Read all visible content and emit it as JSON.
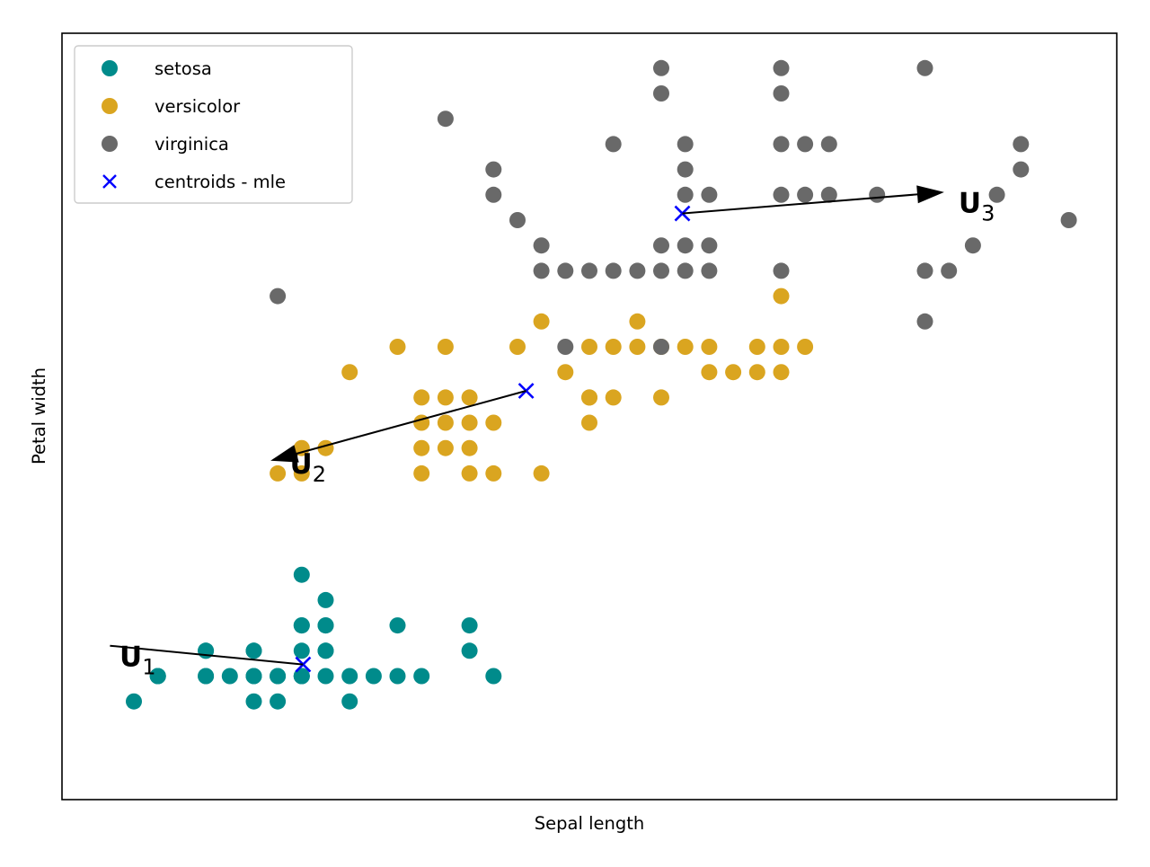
{
  "chart_data": {
    "type": "scatter",
    "xlabel": "Sepal length",
    "ylabel": "Petal width",
    "xlim": [
      4.2,
      8.2
    ],
    "ylim": [
      -0.15,
      2.6
    ],
    "ticks_visible": false,
    "grid": false,
    "legend_placement": "top-left",
    "series": [
      {
        "name": "setosa",
        "color": "#008b8b",
        "marker": "circle",
        "points": [
          [
            4.4,
            0.2
          ],
          [
            4.3,
            0.1
          ],
          [
            4.4,
            0.2
          ],
          [
            4.4,
            0.2
          ],
          [
            4.6,
            0.3
          ],
          [
            4.6,
            0.2
          ],
          [
            4.6,
            0.3
          ],
          [
            4.6,
            0.2
          ],
          [
            4.7,
            0.2
          ],
          [
            4.8,
            0.3
          ],
          [
            4.8,
            0.2
          ],
          [
            4.8,
            0.2
          ],
          [
            4.8,
            0.1
          ],
          [
            4.8,
            0.3
          ],
          [
            4.9,
            0.2
          ],
          [
            4.9,
            0.1
          ],
          [
            4.9,
            0.2
          ],
          [
            5.0,
            0.3
          ],
          [
            5.0,
            0.2
          ],
          [
            5.0,
            0.2
          ],
          [
            5.0,
            0.6
          ],
          [
            5.0,
            0.4
          ],
          [
            5.0,
            0.4
          ],
          [
            5.0,
            0.2
          ],
          [
            5.1,
            0.4
          ],
          [
            5.1,
            0.5
          ],
          [
            5.1,
            0.3
          ],
          [
            5.1,
            0.4
          ],
          [
            5.1,
            0.3
          ],
          [
            5.1,
            0.2
          ],
          [
            5.2,
            0.2
          ],
          [
            5.2,
            0.1
          ],
          [
            5.3,
            0.2
          ],
          [
            5.4,
            0.2
          ],
          [
            5.4,
            0.4
          ],
          [
            5.5,
            0.2
          ],
          [
            5.7,
            0.4
          ],
          [
            5.7,
            0.3
          ],
          [
            5.8,
            0.2
          ]
        ]
      },
      {
        "name": "versicolor",
        "color": "#daa520",
        "marker": "circle",
        "points": [
          [
            4.9,
            1.0
          ],
          [
            5.0,
            1.0
          ],
          [
            5.0,
            1.1
          ],
          [
            5.1,
            1.1
          ],
          [
            5.2,
            1.4
          ],
          [
            5.4,
            1.5
          ],
          [
            5.5,
            1.0
          ],
          [
            5.5,
            1.3
          ],
          [
            5.5,
            1.2
          ],
          [
            5.5,
            1.1
          ],
          [
            5.6,
            1.3
          ],
          [
            5.6,
            1.5
          ],
          [
            5.6,
            1.1
          ],
          [
            5.6,
            1.2
          ],
          [
            5.7,
            1.3
          ],
          [
            5.7,
            1.2
          ],
          [
            5.7,
            1.0
          ],
          [
            5.7,
            1.1
          ],
          [
            5.8,
            1.0
          ],
          [
            5.8,
            1.2
          ],
          [
            5.9,
            1.5
          ],
          [
            6.0,
            1.6
          ],
          [
            6.0,
            1.0
          ],
          [
            6.1,
            1.4
          ],
          [
            6.2,
            1.3
          ],
          [
            6.2,
            1.5
          ],
          [
            6.2,
            1.3
          ],
          [
            6.2,
            1.2
          ],
          [
            6.3,
            1.3
          ],
          [
            6.3,
            1.5
          ],
          [
            6.4,
            1.6
          ],
          [
            6.4,
            1.5
          ],
          [
            6.5,
            1.5
          ],
          [
            6.5,
            1.3
          ],
          [
            6.6,
            1.5
          ],
          [
            6.7,
            1.5
          ],
          [
            6.7,
            1.4
          ],
          [
            6.8,
            1.4
          ],
          [
            6.9,
            1.4
          ],
          [
            6.9,
            1.5
          ],
          [
            7.0,
            1.5
          ],
          [
            7.0,
            1.4
          ],
          [
            7.0,
            1.7
          ],
          [
            7.1,
            1.5
          ]
        ]
      },
      {
        "name": "virginica",
        "color": "#696969",
        "marker": "circle",
        "points": [
          [
            4.9,
            1.7
          ],
          [
            5.6,
            2.4
          ],
          [
            5.8,
            2.2
          ],
          [
            5.8,
            2.1
          ],
          [
            5.9,
            2.0
          ],
          [
            6.0,
            1.9
          ],
          [
            6.0,
            1.8
          ],
          [
            6.1,
            1.8
          ],
          [
            6.1,
            1.5
          ],
          [
            6.2,
            1.8
          ],
          [
            6.3,
            1.8
          ],
          [
            6.3,
            2.3
          ],
          [
            6.4,
            1.8
          ],
          [
            6.5,
            2.6
          ],
          [
            6.5,
            2.5
          ],
          [
            6.5,
            1.9
          ],
          [
            6.5,
            1.8
          ],
          [
            6.5,
            1.5
          ],
          [
            6.6,
            2.3
          ],
          [
            6.6,
            2.2
          ],
          [
            6.6,
            2.1
          ],
          [
            6.6,
            1.9
          ],
          [
            6.6,
            1.8
          ],
          [
            6.7,
            2.1
          ],
          [
            6.7,
            1.9
          ],
          [
            6.7,
            1.8
          ],
          [
            7.0,
            2.6
          ],
          [
            7.0,
            2.5
          ],
          [
            7.0,
            2.3
          ],
          [
            7.0,
            2.1
          ],
          [
            7.0,
            1.8
          ],
          [
            7.1,
            2.3
          ],
          [
            7.1,
            2.1
          ],
          [
            7.2,
            2.3
          ],
          [
            7.2,
            2.1
          ],
          [
            7.4,
            2.1
          ],
          [
            7.6,
            2.6
          ],
          [
            7.6,
            1.8
          ],
          [
            7.6,
            1.6
          ],
          [
            7.7,
            1.8
          ],
          [
            7.8,
            1.9
          ],
          [
            7.9,
            2.1
          ],
          [
            8.0,
            2.3
          ],
          [
            8.0,
            2.2
          ],
          [
            8.2,
            2.0
          ]
        ]
      },
      {
        "name": "centroids - mle",
        "color": "#0000ff",
        "marker": "x",
        "points": [
          [
            5.006,
            0.246
          ],
          [
            5.936,
            1.326
          ],
          [
            6.588,
            2.026
          ]
        ]
      }
    ],
    "annotations": [
      {
        "base": "U",
        "sub": "1",
        "from": [
          5.006,
          0.246
        ],
        "to": [
          4.2,
          0.32
        ],
        "arrowhead": false,
        "label_at": [
          4.24,
          0.24
        ]
      },
      {
        "base": "U",
        "sub": "2",
        "from": [
          5.936,
          1.326
        ],
        "to": [
          4.87,
          1.05
        ],
        "arrowhead": true,
        "label_at": [
          4.95,
          1.0
        ]
      },
      {
        "base": "U",
        "sub": "3",
        "from": [
          6.588,
          2.026
        ],
        "to": [
          7.68,
          2.11
        ],
        "arrowhead": true,
        "label_at": [
          7.74,
          2.03
        ]
      }
    ]
  }
}
